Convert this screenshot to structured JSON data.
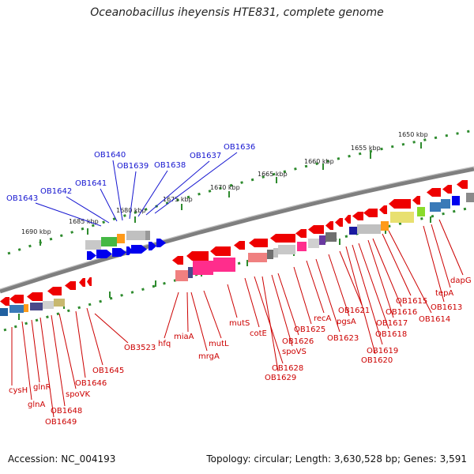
{
  "title": "Oceanobacillus iheyensis HTE831, complete genome",
  "accession": "Accession: NC_004193",
  "topology": "Topology: circular; Length: 3,630,528 bp; Genes: 3,591",
  "colors": {
    "backbone": "#7f7f7f",
    "scale": "#2e8b2e",
    "upper_labels": "#1515d0",
    "lower_labels": "#cc0000",
    "pos_strand": "#0000ee",
    "neg_strand": "#ee0000"
  },
  "scale_labels": [
    "1650 kbp",
    "1655 kbp",
    "1660 kbp",
    "1665 kbp",
    "1670 kbp",
    "1675 kbp",
    "1680 kbp",
    "1685 kbp",
    "1690 kbp"
  ],
  "upper_genes": [
    "OB1643",
    "OB1642",
    "OB1641",
    "OB1640",
    "OB1639",
    "OB1638",
    "OB1637",
    "OB1636"
  ],
  "lower_genes": [
    "cysH",
    "glnA",
    "glnR",
    "OB1649",
    "OB1648",
    "spoVK",
    "OB1646",
    "OB1645",
    "OB3523",
    "hfq",
    "miaA",
    "mrgA",
    "mutL",
    "mutS",
    "cotE",
    "OB1628",
    "OB1629",
    "spoVS",
    "OB1626",
    "OB1625",
    "recA",
    "OB1623",
    "pgsA",
    "OB1621",
    "OB1620",
    "OB1619",
    "OB1618",
    "OB1617",
    "OB1616",
    "OB1615",
    "OB1614",
    "OB1613",
    "tepA",
    "dapG"
  ]
}
